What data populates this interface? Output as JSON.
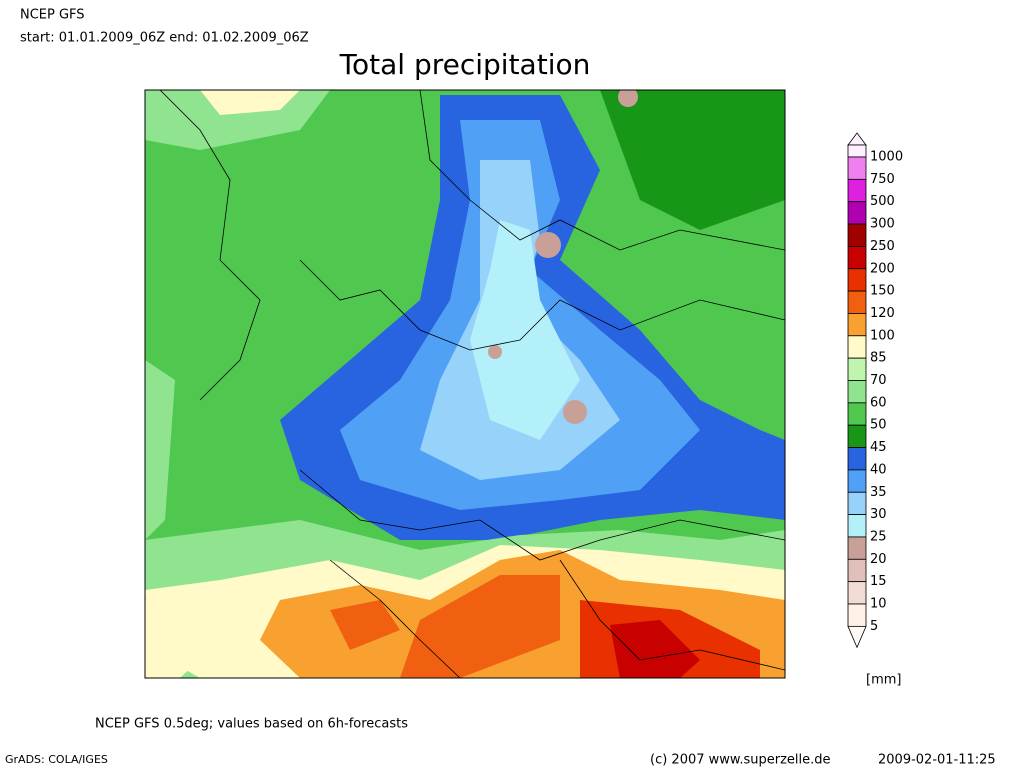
{
  "header": {
    "source": "NCEP GFS",
    "period": "start: 01.01.2009_06Z end: 01.02.2009_06Z"
  },
  "title": "Total precipitation",
  "legend": {
    "unit": "[mm]",
    "levels": [
      {
        "label": 1000,
        "color": "#f080f0"
      },
      {
        "label": 750,
        "color": "#e020e0"
      },
      {
        "label": 500,
        "color": "#b000b0"
      },
      {
        "label": 300,
        "color": "#a00000"
      },
      {
        "label": 250,
        "color": "#c80000"
      },
      {
        "label": 200,
        "color": "#e83000"
      },
      {
        "label": 150,
        "color": "#f06010"
      },
      {
        "label": 120,
        "color": "#f8a030"
      },
      {
        "label": 100,
        "color": "#fffac8"
      },
      {
        "label": 85,
        "color": "#c0f5b0"
      },
      {
        "label": 70,
        "color": "#90e490"
      },
      {
        "label": 60,
        "color": "#50c850"
      },
      {
        "label": 50,
        "color": "#189618"
      },
      {
        "label": 45,
        "color": "#2864e0"
      },
      {
        "label": 40,
        "color": "#50a0f5"
      },
      {
        "label": 35,
        "color": "#96d2fa"
      },
      {
        "label": 30,
        "color": "#b4f0fa"
      },
      {
        "label": 25,
        "color": "#c8a098"
      },
      {
        "label": 20,
        "color": "#e0c0b8"
      },
      {
        "label": 15,
        "color": "#f0dcd4"
      },
      {
        "label": 10,
        "color": "#fff0e8"
      },
      {
        "label": 5,
        "color": "#fffaf5"
      }
    ]
  },
  "footer": {
    "note": "NCEP GFS 0.5deg; values based on 6h-forecasts",
    "software": "GrADS: COLA/IGES",
    "copyright": "(c) 2007 www.superzelle.de",
    "timestamp": "2009-02-01-11:25"
  }
}
